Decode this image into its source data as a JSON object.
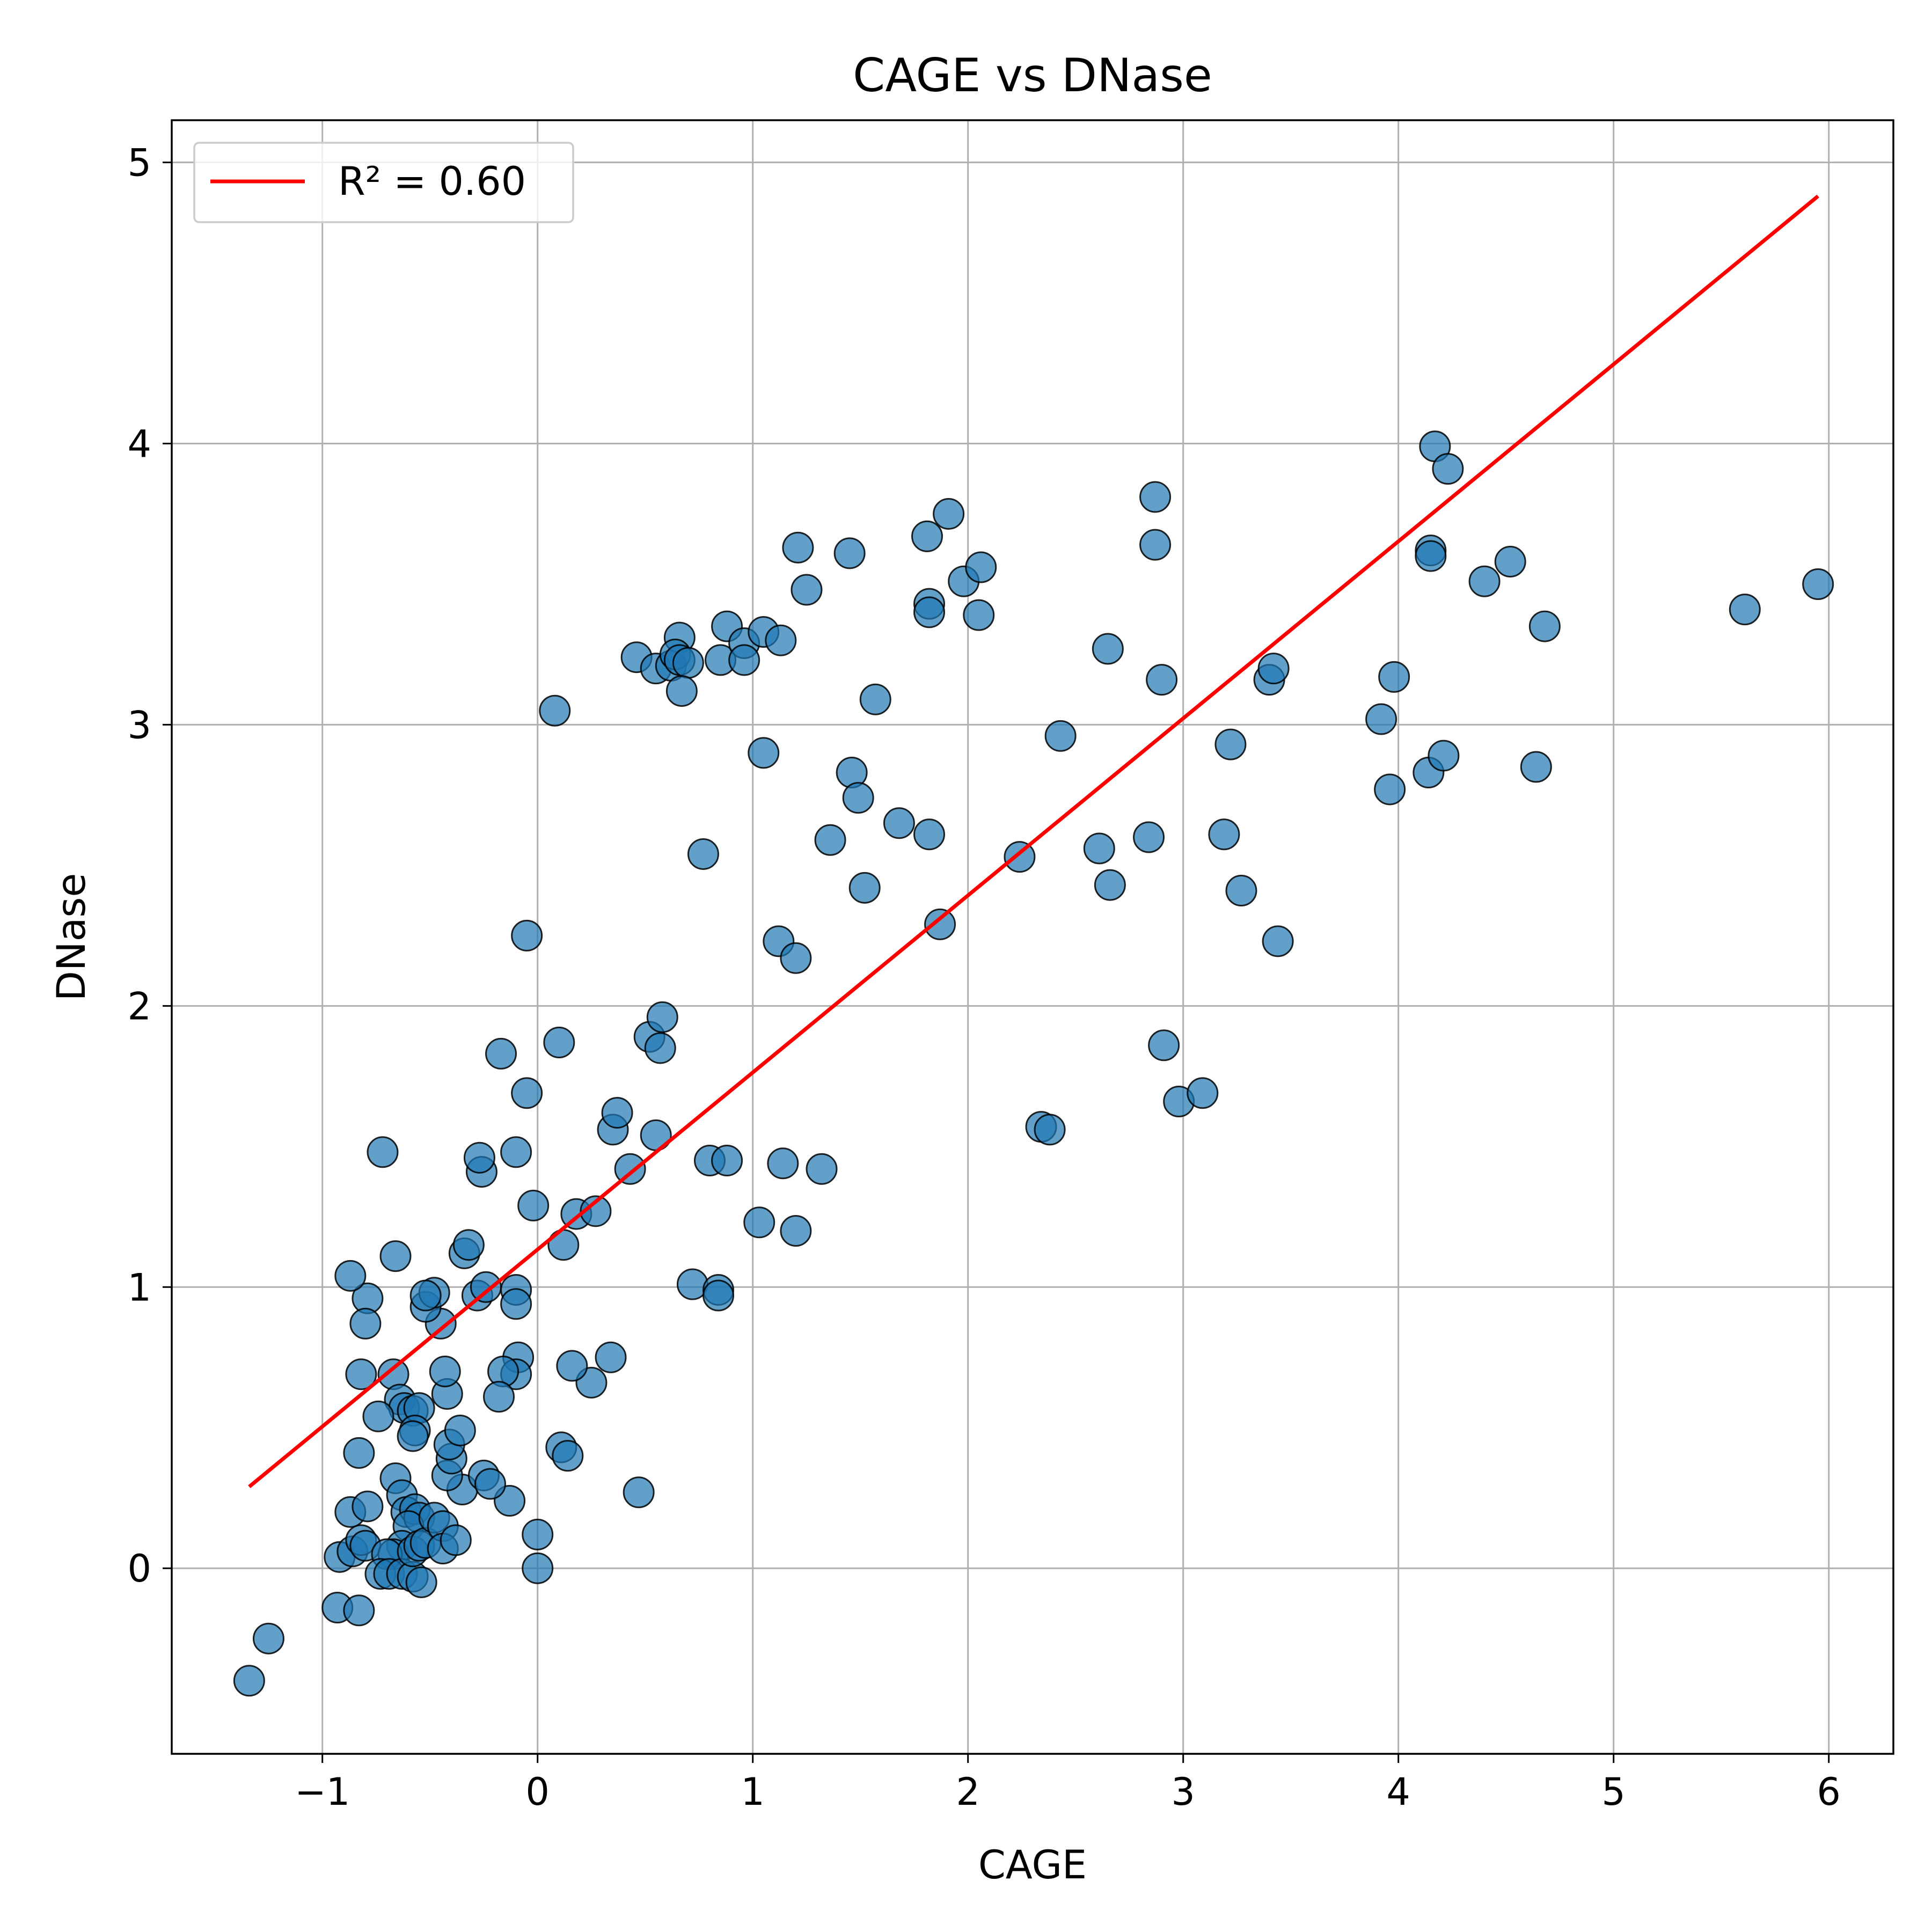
{
  "chart_data": {
    "type": "scatter",
    "title": "CAGE vs DNase",
    "xlabel": "CAGE",
    "ylabel": "DNase",
    "xlim": [
      -1.7,
      6.3
    ],
    "ylim": [
      -0.66,
      5.15
    ],
    "xticks": [
      -1,
      0,
      1,
      2,
      3,
      4,
      5,
      6
    ],
    "yticks": [
      0,
      1,
      2,
      3,
      4,
      5
    ],
    "xtick_labels": [
      "−1",
      "0",
      "1",
      "2",
      "3",
      "4",
      "5",
      "6"
    ],
    "ytick_labels": [
      "0",
      "1",
      "2",
      "3",
      "4",
      "5"
    ],
    "grid": true,
    "legend_position": "top-left",
    "legend": [
      {
        "label": "R² = 0.60",
        "color": "#ff0000"
      }
    ],
    "colors": {
      "points": "#1f77b4",
      "point_edge": "#000000",
      "fit_line": "#ff0000",
      "grid": "#b0b0b0"
    },
    "series": [
      {
        "kind": "points",
        "points": [
          [
            -1.34,
            -0.4
          ],
          [
            -1.25,
            -0.25
          ],
          [
            -0.93,
            -0.14
          ],
          [
            -0.83,
            -0.15
          ],
          [
            -0.92,
            0.04
          ],
          [
            -0.87,
            0.2
          ],
          [
            -0.86,
            0.06
          ],
          [
            -0.82,
            0.1
          ],
          [
            -0.8,
            0.08
          ],
          [
            -0.79,
            0.22
          ],
          [
            -0.83,
            0.41
          ],
          [
            -0.82,
            0.69
          ],
          [
            -0.79,
            0.96
          ],
          [
            -0.8,
            0.87
          ],
          [
            -0.87,
            1.04
          ],
          [
            -0.72,
            1.48
          ],
          [
            -0.66,
            1.11
          ],
          [
            -0.67,
            0.69
          ],
          [
            -0.64,
            0.6
          ],
          [
            -0.62,
            0.57
          ],
          [
            -0.74,
            0.54
          ],
          [
            -0.58,
            0.56
          ],
          [
            -0.55,
            0.57
          ],
          [
            -0.57,
            0.49
          ],
          [
            -0.58,
            0.47
          ],
          [
            -0.66,
            0.32
          ],
          [
            -0.63,
            0.26
          ],
          [
            -0.61,
            0.2
          ],
          [
            -0.57,
            0.21
          ],
          [
            -0.55,
            0.18
          ],
          [
            -0.6,
            0.15
          ],
          [
            -0.63,
            0.08
          ],
          [
            -0.67,
            0.05
          ],
          [
            -0.7,
            0.05
          ],
          [
            -0.73,
            -0.02
          ],
          [
            -0.69,
            -0.02
          ],
          [
            -0.63,
            -0.02
          ],
          [
            -0.58,
            -0.03
          ],
          [
            -0.54,
            -0.05
          ],
          [
            -0.58,
            0.06
          ],
          [
            -0.55,
            0.08
          ],
          [
            -0.52,
            0.09
          ],
          [
            -0.48,
            0.18
          ],
          [
            -0.44,
            0.15
          ],
          [
            -0.44,
            0.07
          ],
          [
            -0.38,
            0.1
          ],
          [
            -0.35,
            0.28
          ],
          [
            -0.42,
            0.33
          ],
          [
            -0.4,
            0.39
          ],
          [
            -0.41,
            0.44
          ],
          [
            -0.36,
            0.49
          ],
          [
            -0.42,
            0.62
          ],
          [
            -0.43,
            0.7
          ],
          [
            -0.45,
            0.87
          ],
          [
            -0.52,
            0.93
          ],
          [
            -0.48,
            0.98
          ],
          [
            -0.52,
            0.97
          ],
          [
            -0.34,
            1.12
          ],
          [
            -0.32,
            1.15
          ],
          [
            -0.28,
            0.97
          ],
          [
            -0.24,
            1.0
          ],
          [
            -0.26,
            1.41
          ],
          [
            -0.27,
            1.46
          ],
          [
            -0.17,
            1.83
          ],
          [
            -0.1,
            1.48
          ],
          [
            -0.05,
            2.25
          ],
          [
            -0.05,
            1.69
          ],
          [
            -0.1,
            0.99
          ],
          [
            -0.1,
            0.94
          ],
          [
            -0.09,
            0.75
          ],
          [
            -0.1,
            0.69
          ],
          [
            -0.16,
            0.7
          ],
          [
            -0.18,
            0.61
          ],
          [
            -0.13,
            0.24
          ],
          [
            -0.25,
            0.33
          ],
          [
            -0.22,
            0.3
          ],
          [
            0.0,
            0.12
          ],
          [
            0.0,
            0.0
          ],
          [
            -0.02,
            1.29
          ],
          [
            0.08,
            3.05
          ],
          [
            0.1,
            1.87
          ],
          [
            0.12,
            1.15
          ],
          [
            0.18,
            1.26
          ],
          [
            0.27,
            1.27
          ],
          [
            0.25,
            0.66
          ],
          [
            0.16,
            0.72
          ],
          [
            0.11,
            0.43
          ],
          [
            0.14,
            0.4
          ],
          [
            0.34,
            0.75
          ],
          [
            0.35,
            1.56
          ],
          [
            0.37,
            1.62
          ],
          [
            0.43,
            1.42
          ],
          [
            0.55,
            1.54
          ],
          [
            0.52,
            1.89
          ],
          [
            0.57,
            1.85
          ],
          [
            0.58,
            1.96
          ],
          [
            0.47,
            0.27
          ],
          [
            0.46,
            3.24
          ],
          [
            0.55,
            3.2
          ],
          [
            0.62,
            3.21
          ],
          [
            0.66,
            3.31
          ],
          [
            0.64,
            3.25
          ],
          [
            0.66,
            3.23
          ],
          [
            0.7,
            3.22
          ],
          [
            0.67,
            3.12
          ],
          [
            0.77,
            2.54
          ],
          [
            0.72,
            1.01
          ],
          [
            0.8,
            1.45
          ],
          [
            0.88,
            1.45
          ],
          [
            0.84,
            0.99
          ],
          [
            0.84,
            0.97
          ],
          [
            0.85,
            3.23
          ],
          [
            0.88,
            3.35
          ],
          [
            0.96,
            3.29
          ],
          [
            0.96,
            3.23
          ],
          [
            1.05,
            3.33
          ],
          [
            1.13,
            3.3
          ],
          [
            1.05,
            2.9
          ],
          [
            1.03,
            1.23
          ],
          [
            1.14,
            1.44
          ],
          [
            1.2,
            1.2
          ],
          [
            1.12,
            2.23
          ],
          [
            1.2,
            2.17
          ],
          [
            1.21,
            3.63
          ],
          [
            1.25,
            3.48
          ],
          [
            1.36,
            2.59
          ],
          [
            1.32,
            1.42
          ],
          [
            1.45,
            3.61
          ],
          [
            1.46,
            2.83
          ],
          [
            1.49,
            2.74
          ],
          [
            1.52,
            2.42
          ],
          [
            1.57,
            3.09
          ],
          [
            1.68,
            2.65
          ],
          [
            1.81,
            3.67
          ],
          [
            1.82,
            3.43
          ],
          [
            1.82,
            2.61
          ],
          [
            1.82,
            3.4
          ],
          [
            1.87,
            2.29
          ],
          [
            1.91,
            3.75
          ],
          [
            1.98,
            3.51
          ],
          [
            2.06,
            3.56
          ],
          [
            2.05,
            3.39
          ],
          [
            2.24,
            2.53
          ],
          [
            2.34,
            1.57
          ],
          [
            2.38,
            1.56
          ],
          [
            2.43,
            2.96
          ],
          [
            2.61,
            2.56
          ],
          [
            2.65,
            3.27
          ],
          [
            2.66,
            2.43
          ],
          [
            2.84,
            2.6
          ],
          [
            2.87,
            3.81
          ],
          [
            2.87,
            3.64
          ],
          [
            2.9,
            3.16
          ],
          [
            2.91,
            1.86
          ],
          [
            2.98,
            1.66
          ],
          [
            3.09,
            1.69
          ],
          [
            3.19,
            2.61
          ],
          [
            3.22,
            2.93
          ],
          [
            3.27,
            2.41
          ],
          [
            3.4,
            3.16
          ],
          [
            3.42,
            3.2
          ],
          [
            3.44,
            2.23
          ],
          [
            3.92,
            3.02
          ],
          [
            3.96,
            2.77
          ],
          [
            3.98,
            3.17
          ],
          [
            4.14,
            2.83
          ],
          [
            4.21,
            2.89
          ],
          [
            4.15,
            3.62
          ],
          [
            4.15,
            3.6
          ],
          [
            4.17,
            3.99
          ],
          [
            4.23,
            3.91
          ],
          [
            4.4,
            3.51
          ],
          [
            4.52,
            3.58
          ],
          [
            4.64,
            2.85
          ],
          [
            4.68,
            3.35
          ],
          [
            5.61,
            3.41
          ],
          [
            5.95,
            3.5
          ]
        ]
      },
      {
        "kind": "fit_line",
        "name": "R² = 0.60",
        "x": [
          -1.34,
          5.95
        ],
        "y": [
          0.29,
          4.88
        ]
      }
    ]
  }
}
